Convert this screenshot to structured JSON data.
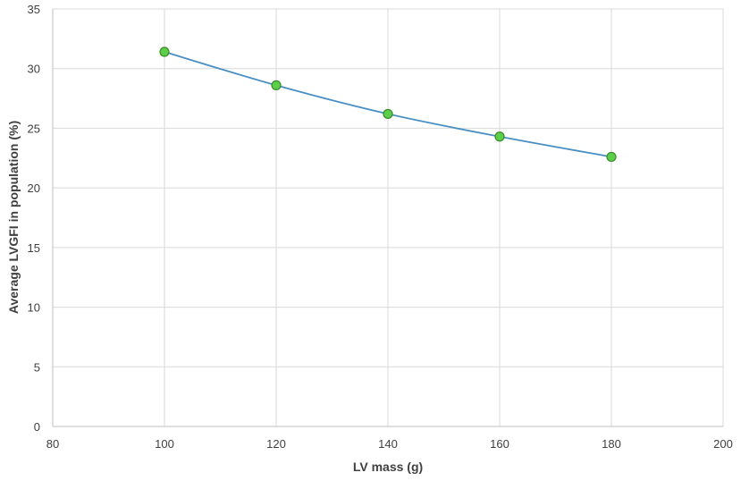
{
  "chart_data": {
    "type": "scatter",
    "title": "",
    "xlabel": "LV mass (g)",
    "ylabel": "Average LVGFI in population (%)",
    "xlim": [
      80,
      200
    ],
    "ylim": [
      0,
      35
    ],
    "x_ticks": [
      80,
      100,
      120,
      140,
      160,
      180,
      200
    ],
    "y_ticks": [
      0,
      5,
      10,
      15,
      20,
      25,
      30,
      35
    ],
    "grid": true,
    "legend": "none",
    "series": [
      {
        "x": [
          100,
          120,
          140,
          160,
          180
        ],
        "y": [
          31.4,
          28.6,
          26.2,
          24.3,
          22.6
        ],
        "line_color": "#4a8fc4",
        "marker_fill": "#5ccf4a",
        "marker_edge": "#3a8a2a",
        "smooth": true
      }
    ]
  }
}
